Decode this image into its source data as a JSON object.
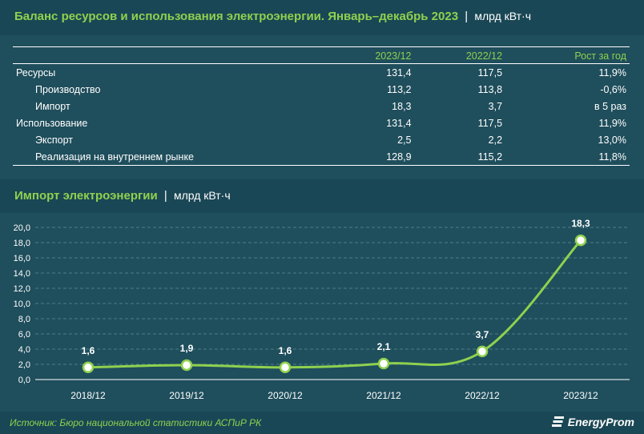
{
  "header": {
    "title": "Баланс ресурсов и использования электроэнергии. Январь–декабрь 2023",
    "separator": "|",
    "unit": "млрд кВт·ч"
  },
  "table": {
    "columns": [
      "",
      "2023/12",
      "2022/12",
      "Рост за год"
    ],
    "rows": [
      {
        "label": "Ресурсы",
        "indent": false,
        "values": [
          "131,4",
          "117,5",
          "11,9%"
        ]
      },
      {
        "label": "Производство",
        "indent": true,
        "values": [
          "113,2",
          "113,8",
          "-0,6%"
        ]
      },
      {
        "label": "Импорт",
        "indent": true,
        "values": [
          "18,3",
          "3,7",
          "в 5 раз"
        ]
      },
      {
        "label": "Использование",
        "indent": false,
        "values": [
          "131,4",
          "117,5",
          "11,9%"
        ]
      },
      {
        "label": "Экспорт",
        "indent": true,
        "values": [
          "2,5",
          "2,2",
          "13,0%"
        ]
      },
      {
        "label": "Реализация на внутреннем рынке",
        "indent": true,
        "values": [
          "128,9",
          "115,2",
          "11,8%"
        ]
      }
    ]
  },
  "chart_header": {
    "title": "Импорт электроэнергии",
    "separator": "|",
    "unit": "млрд кВт·ч"
  },
  "chart_data": {
    "type": "line",
    "categories": [
      "2018/12",
      "2019/12",
      "2020/12",
      "2021/12",
      "2022/12",
      "2023/12"
    ],
    "values": [
      1.6,
      1.9,
      1.6,
      2.1,
      3.7,
      18.3
    ],
    "value_labels": [
      "1,6",
      "1,9",
      "1,6",
      "2,1",
      "3,7",
      "18,3"
    ],
    "yticks": [
      "0,0",
      "2,0",
      "4,0",
      "6,0",
      "8,0",
      "10,0",
      "12,0",
      "14,0",
      "16,0",
      "18,0",
      "20,0"
    ],
    "ylim": [
      0,
      20
    ],
    "grid": true,
    "line_color": "#8fd14f"
  },
  "footer": {
    "source": "Источник: Бюро национальной статистики АСПиР РК",
    "brand": "EnergyProm"
  }
}
